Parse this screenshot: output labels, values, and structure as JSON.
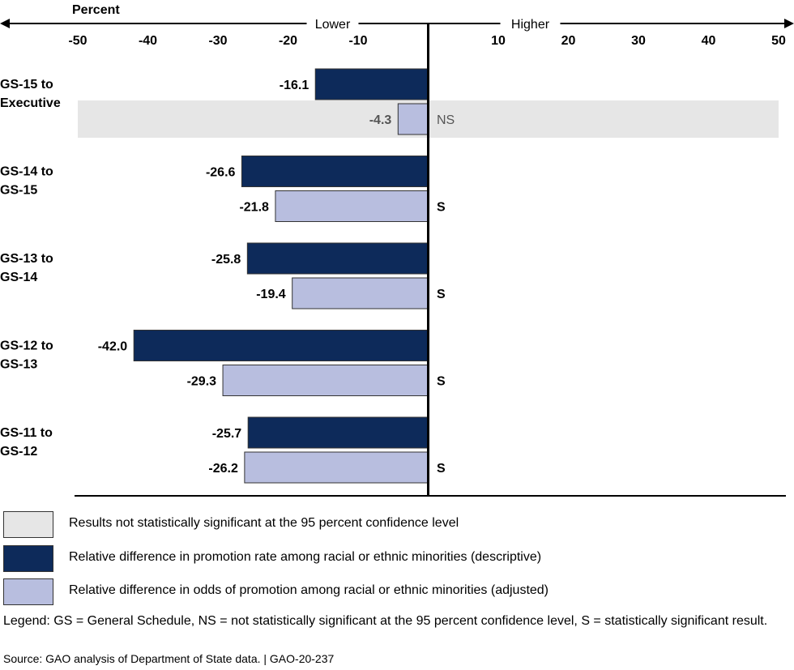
{
  "chart_data": {
    "type": "bar",
    "orientation": "horizontal",
    "unit_label": "Percent",
    "direction_labels": {
      "lower": "Lower",
      "higher": "Higher"
    },
    "xlim": [
      -50,
      50
    ],
    "ticks": [
      -50,
      -40,
      -30,
      -20,
      -10,
      10,
      20,
      30,
      40,
      50
    ],
    "categories": [
      {
        "label_lines": [
          "GS-15 to",
          "Executive"
        ],
        "descriptive": -16.1,
        "adjusted": -4.3,
        "significance": "NS",
        "significant": false
      },
      {
        "label_lines": [
          "GS-14 to",
          "GS-15"
        ],
        "descriptive": -26.6,
        "adjusted": -21.8,
        "significance": "S",
        "significant": true
      },
      {
        "label_lines": [
          "GS-13 to",
          "GS-14"
        ],
        "descriptive": -25.8,
        "adjusted": -19.4,
        "significance": "S",
        "significant": true
      },
      {
        "label_lines": [
          "GS-12 to",
          "GS-13"
        ],
        "descriptive": -42.0,
        "adjusted": -29.3,
        "significance": "S",
        "significant": true
      },
      {
        "label_lines": [
          "GS-11 to",
          "GS-12"
        ],
        "descriptive": -25.7,
        "adjusted": -26.2,
        "significance": "S",
        "significant": true
      }
    ],
    "colors": {
      "descriptive": "#0d2a5a",
      "adjusted": "#b8bedf",
      "not_significant_shading": "#e6e6e6"
    }
  },
  "legend": {
    "items": [
      {
        "key": "ns",
        "label": "Results not statistically significant at the 95 percent confidence level",
        "color": "#e6e6e6"
      },
      {
        "key": "descriptive",
        "label": "Relative difference in promotion rate among racial or ethnic minorities (descriptive)",
        "color": "#0d2a5a"
      },
      {
        "key": "adjusted",
        "label": "Relative difference in odds of promotion among racial or ethnic minorities (adjusted)",
        "color": "#b8bedf"
      }
    ]
  },
  "notes": {
    "legend_note": "Legend: GS = General Schedule, NS = not statistically significant at the 95 percent confidence level, S = statistically significant result.",
    "source": "Source: GAO analysis of Department of State data.   |  GAO-20-237"
  }
}
